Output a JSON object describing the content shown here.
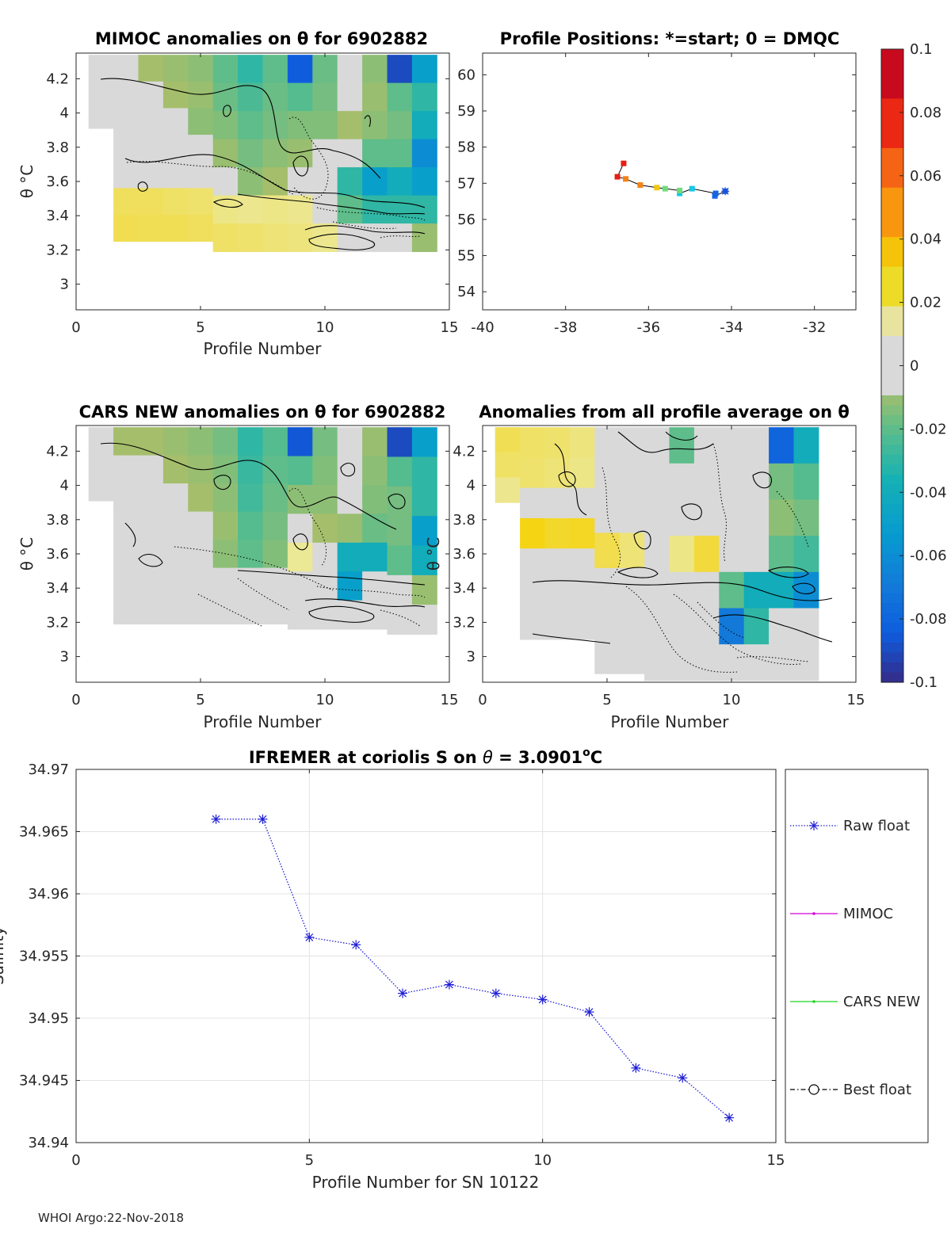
{
  "colors": {
    "raw_float": "#1f1fd6",
    "mimoc": "#d400d4",
    "cars_new": "#1fd61f",
    "best_float": "#000000",
    "panel_fill": "#d9d9d9",
    "axis": "#262626"
  },
  "footer": {
    "text": "WHOI Argo:22-Nov-2018"
  },
  "colorbar": {
    "range": [
      -0.1,
      0.1
    ],
    "tick_values": [
      0.1,
      0.08,
      0.06,
      0.04,
      0.02,
      0,
      -0.02,
      -0.04,
      -0.06,
      -0.08,
      -0.1
    ],
    "tick_labels": [
      "0.1",
      "0.08",
      "0.06",
      "0.04",
      "0.02",
      "0",
      "-0.02",
      "-0.04",
      "-0.06",
      "-0.08",
      "-0.1"
    ]
  },
  "chart_data": [
    {
      "id": "mimoc",
      "type": "heatmap",
      "title": "MIMOC anomalies on θ  for 6902882",
      "xlabel": "Profile Number",
      "ylabel": "θ °C",
      "xlim": [
        0,
        15
      ],
      "ylim": [
        2.85,
        4.35
      ],
      "xticks": [
        0,
        5,
        10,
        15
      ],
      "yticks": [
        3,
        3.2,
        3.4,
        3.6,
        3.8,
        4,
        4.2
      ],
      "ytick_labels": [
        "3",
        "3.2",
        "3.4",
        "3.6",
        "3.8",
        "4",
        "4.2"
      ],
      "columns": [
        {
          "x": 1,
          "top": 4.34,
          "bottom": 3.91,
          "values": [
            -0.004,
            0.0
          ]
        },
        {
          "x": 2,
          "top": 4.34,
          "bottom": 3.25,
          "values": [
            -0.006,
            -0.004,
            0.0,
            0.0,
            0.002,
            0.022,
            0.025
          ]
        },
        {
          "x": 3,
          "top": 4.34,
          "bottom": 3.25,
          "values": [
            -0.008,
            -0.006,
            -0.004,
            0.0,
            0.004,
            0.022,
            0.024
          ]
        },
        {
          "x": 4,
          "top": 4.34,
          "bottom": 3.25,
          "values": [
            -0.01,
            -0.008,
            -0.006,
            0.0,
            0.006,
            0.02,
            0.024
          ]
        },
        {
          "x": 5,
          "top": 4.34,
          "bottom": 3.25,
          "values": [
            -0.012,
            -0.01,
            -0.012,
            -0.004,
            0.0,
            0.018,
            0.022
          ]
        },
        {
          "x": 6,
          "top": 4.34,
          "bottom": 3.19,
          "values": [
            -0.02,
            -0.018,
            -0.014,
            -0.01,
            -0.006,
            0.012,
            0.02
          ]
        },
        {
          "x": 7,
          "top": 4.34,
          "bottom": 3.19,
          "values": [
            -0.03,
            -0.024,
            -0.02,
            -0.016,
            -0.012,
            0.01,
            0.018
          ]
        },
        {
          "x": 8,
          "top": 4.34,
          "bottom": 3.19,
          "values": [
            -0.02,
            -0.018,
            -0.016,
            -0.012,
            -0.008,
            0.012,
            0.016
          ]
        },
        {
          "x": 9,
          "top": 4.34,
          "bottom": 3.19,
          "values": [
            -0.084,
            -0.022,
            -0.014,
            -0.01,
            0.006,
            0.01,
            0.014
          ]
        },
        {
          "x": 10,
          "top": 4.34,
          "bottom": 3.19,
          "values": [
            -0.018,
            -0.016,
            -0.014,
            -0.006,
            -0.004,
            0.004,
            0.01
          ]
        },
        {
          "x": 11,
          "top": 4.34,
          "bottom": 3.19,
          "values": [
            0.0,
            -0.004,
            -0.008,
            -0.006,
            -0.03,
            -0.02,
            0.004
          ]
        },
        {
          "x": 12,
          "top": 4.34,
          "bottom": 3.19,
          "values": [
            -0.012,
            -0.01,
            -0.012,
            -0.02,
            -0.05,
            -0.03,
            0.0
          ]
        },
        {
          "x": 13,
          "top": 4.34,
          "bottom": 3.19,
          "values": [
            -0.09,
            -0.02,
            -0.016,
            -0.02,
            -0.04,
            -0.03,
            0.002
          ]
        },
        {
          "x": 14,
          "top": 4.34,
          "bottom": 3.19,
          "values": [
            -0.05,
            -0.03,
            -0.04,
            -0.06,
            -0.05,
            -0.03,
            -0.01
          ]
        }
      ]
    },
    {
      "id": "positions",
      "type": "scatter",
      "title": "Profile Positions: *=start; 0 = DMQC",
      "xlabel": "",
      "ylabel": "",
      "xlim": [
        -40,
        -31
      ],
      "ylim": [
        53.5,
        60.6
      ],
      "xticks": [
        -40,
        -38,
        -36,
        -34,
        -32
      ],
      "xtick_labels": [
        "-40",
        "-38",
        "-36",
        "-34",
        "-32"
      ],
      "yticks": [
        54,
        55,
        56,
        57,
        58,
        59,
        60
      ],
      "ytick_labels": [
        "54",
        "55",
        "56",
        "57",
        "58",
        "59",
        "60"
      ],
      "points": [
        {
          "profile": 1,
          "lon": -34.15,
          "lat": 56.78
        },
        {
          "profile": 2,
          "lon": -34.4,
          "lat": 56.65
        },
        {
          "profile": 3,
          "lon": -34.38,
          "lat": 56.72
        },
        {
          "profile": 4,
          "lon": -34.95,
          "lat": 56.85
        },
        {
          "profile": 5,
          "lon": -35.25,
          "lat": 56.72
        },
        {
          "profile": 6,
          "lon": -35.25,
          "lat": 56.8
        },
        {
          "profile": 7,
          "lon": -35.6,
          "lat": 56.85
        },
        {
          "profile": 8,
          "lon": -35.8,
          "lat": 56.88
        },
        {
          "profile": 9,
          "lon": -36.2,
          "lat": 56.95
        },
        {
          "profile": 10,
          "lon": -36.55,
          "lat": 57.12
        },
        {
          "profile": 11,
          "lon": -36.75,
          "lat": 57.18
        },
        {
          "profile": 12,
          "lon": -36.6,
          "lat": 57.55
        }
      ],
      "start_point": {
        "lon": -34.15,
        "lat": 56.78
      }
    },
    {
      "id": "cars",
      "type": "heatmap",
      "title": "CARS NEW anomalies on θ for 6902882",
      "xlabel": "Profile Number",
      "ylabel": "θ °C",
      "xlim": [
        0,
        15
      ],
      "ylim": [
        2.85,
        4.35
      ],
      "xticks": [
        0,
        5,
        10,
        15
      ],
      "yticks": [
        3,
        3.2,
        3.4,
        3.6,
        3.8,
        4,
        4.2
      ],
      "ytick_labels": [
        "3",
        "3.2",
        "3.4",
        "3.6",
        "3.8",
        "4",
        "4.2"
      ],
      "columns": [
        {
          "x": 1,
          "top": 4.34,
          "bottom": 3.91,
          "values": [
            0.0,
            0.0
          ]
        },
        {
          "x": 2,
          "top": 4.34,
          "bottom": 3.19,
          "values": [
            -0.008,
            -0.006,
            -0.004,
            -0.002,
            -0.004,
            -0.006,
            -0.004
          ]
        },
        {
          "x": 3,
          "top": 4.34,
          "bottom": 3.19,
          "values": [
            -0.008,
            -0.006,
            -0.004,
            -0.004,
            -0.006,
            -0.004,
            -0.004
          ]
        },
        {
          "x": 4,
          "top": 4.34,
          "bottom": 3.19,
          "values": [
            -0.01,
            -0.008,
            -0.006,
            -0.004,
            -0.004,
            -0.002,
            0.0
          ]
        },
        {
          "x": 5,
          "top": 4.34,
          "bottom": 3.19,
          "values": [
            -0.012,
            -0.01,
            -0.008,
            -0.004,
            0.0,
            0.0,
            0.0
          ]
        },
        {
          "x": 6,
          "top": 4.34,
          "bottom": 3.19,
          "values": [
            -0.016,
            -0.014,
            -0.012,
            -0.01,
            -0.012,
            -0.004,
            0.0
          ]
        },
        {
          "x": 7,
          "top": 4.34,
          "bottom": 3.19,
          "values": [
            -0.03,
            -0.028,
            -0.026,
            -0.022,
            -0.02,
            0.0,
            0.0
          ]
        },
        {
          "x": 8,
          "top": 4.34,
          "bottom": 3.19,
          "values": [
            -0.022,
            -0.02,
            -0.018,
            -0.016,
            -0.014,
            0.0,
            0.0
          ]
        },
        {
          "x": 9,
          "top": 4.34,
          "bottom": 3.16,
          "values": [
            -0.086,
            -0.022,
            -0.012,
            -0.004,
            0.008,
            0.0,
            0.0
          ]
        },
        {
          "x": 10,
          "top": 4.34,
          "bottom": 3.16,
          "values": [
            -0.016,
            -0.014,
            -0.012,
            -0.008,
            -0.006,
            0.0,
            0.0
          ]
        },
        {
          "x": 11,
          "top": 4.34,
          "bottom": 3.16,
          "values": [
            0.0,
            -0.004,
            -0.006,
            -0.01,
            -0.04,
            -0.05,
            0.0
          ]
        },
        {
          "x": 12,
          "top": 4.34,
          "bottom": 3.16,
          "values": [
            -0.01,
            -0.012,
            -0.014,
            -0.018,
            -0.04,
            -0.006,
            0.0
          ]
        },
        {
          "x": 13,
          "top": 4.34,
          "bottom": 3.13,
          "values": [
            -0.09,
            -0.022,
            -0.016,
            -0.016,
            -0.02,
            -0.004,
            0.0
          ]
        },
        {
          "x": 14,
          "top": 4.34,
          "bottom": 3.13,
          "values": [
            -0.05,
            -0.03,
            -0.03,
            -0.05,
            -0.04,
            -0.01,
            0.0
          ]
        }
      ]
    },
    {
      "id": "profile_avg",
      "type": "heatmap",
      "title": "Anomalies from all profile average on θ",
      "xlabel": "Profile Number",
      "ylabel": "θ °C",
      "xlim": [
        0,
        15
      ],
      "ylim": [
        2.85,
        4.35
      ],
      "xticks": [
        0,
        5,
        10,
        15
      ],
      "yticks": [
        3,
        3.2,
        3.4,
        3.6,
        3.8,
        4,
        4.2
      ],
      "ytick_labels": [
        "3",
        "3.2",
        "3.4",
        "3.6",
        "3.8",
        "4",
        "4.2"
      ],
      "columns": [
        {
          "x": 1,
          "top": 4.34,
          "bottom": 3.9,
          "values": [
            0.024,
            0.02,
            0.01
          ]
        },
        {
          "x": 2,
          "top": 4.34,
          "bottom": 3.1,
          "values": [
            0.02,
            0.018,
            0.0,
            0.04,
            0.0,
            0.0,
            0.0
          ]
        },
        {
          "x": 3,
          "top": 4.34,
          "bottom": 3.1,
          "values": [
            0.018,
            0.016,
            0.0,
            0.034,
            0.0,
            0.0,
            0.0
          ]
        },
        {
          "x": 4,
          "top": 4.34,
          "bottom": 3.1,
          "values": [
            0.014,
            0.012,
            0.004,
            0.036,
            0.0,
            0.0,
            0.0
          ]
        },
        {
          "x": 5,
          "top": 4.34,
          "bottom": 2.9,
          "values": [
            0.006,
            0.004,
            0.006,
            0.026,
            0.0,
            0.0,
            0.0
          ]
        },
        {
          "x": 6,
          "top": 4.34,
          "bottom": 2.9,
          "values": [
            0.0,
            0.0,
            0.004,
            0.016,
            0.0,
            0.0,
            0.0
          ]
        },
        {
          "x": 7,
          "top": 4.34,
          "bottom": 2.86,
          "values": [
            0.0,
            0.0,
            0.0,
            0.004,
            0.0,
            0.0,
            0.0
          ]
        },
        {
          "x": 8,
          "top": 4.34,
          "bottom": 2.86,
          "values": [
            -0.02,
            0.0,
            0.0,
            0.012,
            0.0,
            0.0,
            0.0
          ]
        },
        {
          "x": 9,
          "top": 4.34,
          "bottom": 2.86,
          "values": [
            0.0,
            0.0,
            0.0,
            0.03,
            0.0,
            0.0,
            0.0
          ]
        },
        {
          "x": 10,
          "top": 4.34,
          "bottom": 2.86,
          "values": [
            0.0,
            0.0,
            0.0,
            0.004,
            -0.02,
            -0.07,
            0.0
          ]
        },
        {
          "x": 11,
          "top": 4.34,
          "bottom": 2.86,
          "values": [
            0.0,
            0.0,
            0.0,
            -0.006,
            -0.04,
            -0.03,
            0.0
          ]
        },
        {
          "x": 12,
          "top": 4.34,
          "bottom": 2.86,
          "values": [
            -0.08,
            -0.016,
            -0.012,
            -0.02,
            -0.04,
            -0.006,
            0.0
          ]
        },
        {
          "x": 13,
          "top": 4.34,
          "bottom": 2.86,
          "values": [
            -0.04,
            -0.022,
            -0.016,
            -0.026,
            -0.06,
            -0.006,
            0.0
          ]
        }
      ]
    },
    {
      "id": "salinity",
      "type": "line",
      "title": "IFREMER at coriolis S on θ = 3.0901°C",
      "title_parts": [
        "IFREMER at coriolis S on ",
        "θ",
        " = 3.0901",
        "o",
        "C"
      ],
      "xlabel": "Profile Number for SN 10122",
      "ylabel": "Salinity",
      "xlim": [
        0,
        15
      ],
      "ylim": [
        34.94,
        34.97
      ],
      "xticks": [
        0,
        5,
        10,
        15
      ],
      "yticks": [
        34.94,
        34.945,
        34.95,
        34.955,
        34.96,
        34.965,
        34.97
      ],
      "ytick_labels": [
        "34.94",
        "34.945",
        "34.95",
        "34.955",
        "34.96",
        "34.965",
        "34.97"
      ],
      "series": [
        {
          "name": "Raw float",
          "x": [
            3,
            4,
            5,
            6,
            7,
            8,
            9,
            10,
            11,
            12,
            13,
            14
          ],
          "values": [
            34.966,
            34.966,
            34.9565,
            34.9559,
            34.952,
            34.9527,
            34.952,
            34.9515,
            34.9505,
            34.946,
            34.9452,
            34.942
          ]
        },
        {
          "name": "MIMOC",
          "x": [],
          "values": []
        },
        {
          "name": "CARS NEW",
          "x": [],
          "values": []
        },
        {
          "name": "Best float",
          "x": [],
          "values": []
        }
      ],
      "legend": [
        "Raw float",
        "MIMOC",
        "CARS NEW",
        "Best float"
      ]
    }
  ]
}
